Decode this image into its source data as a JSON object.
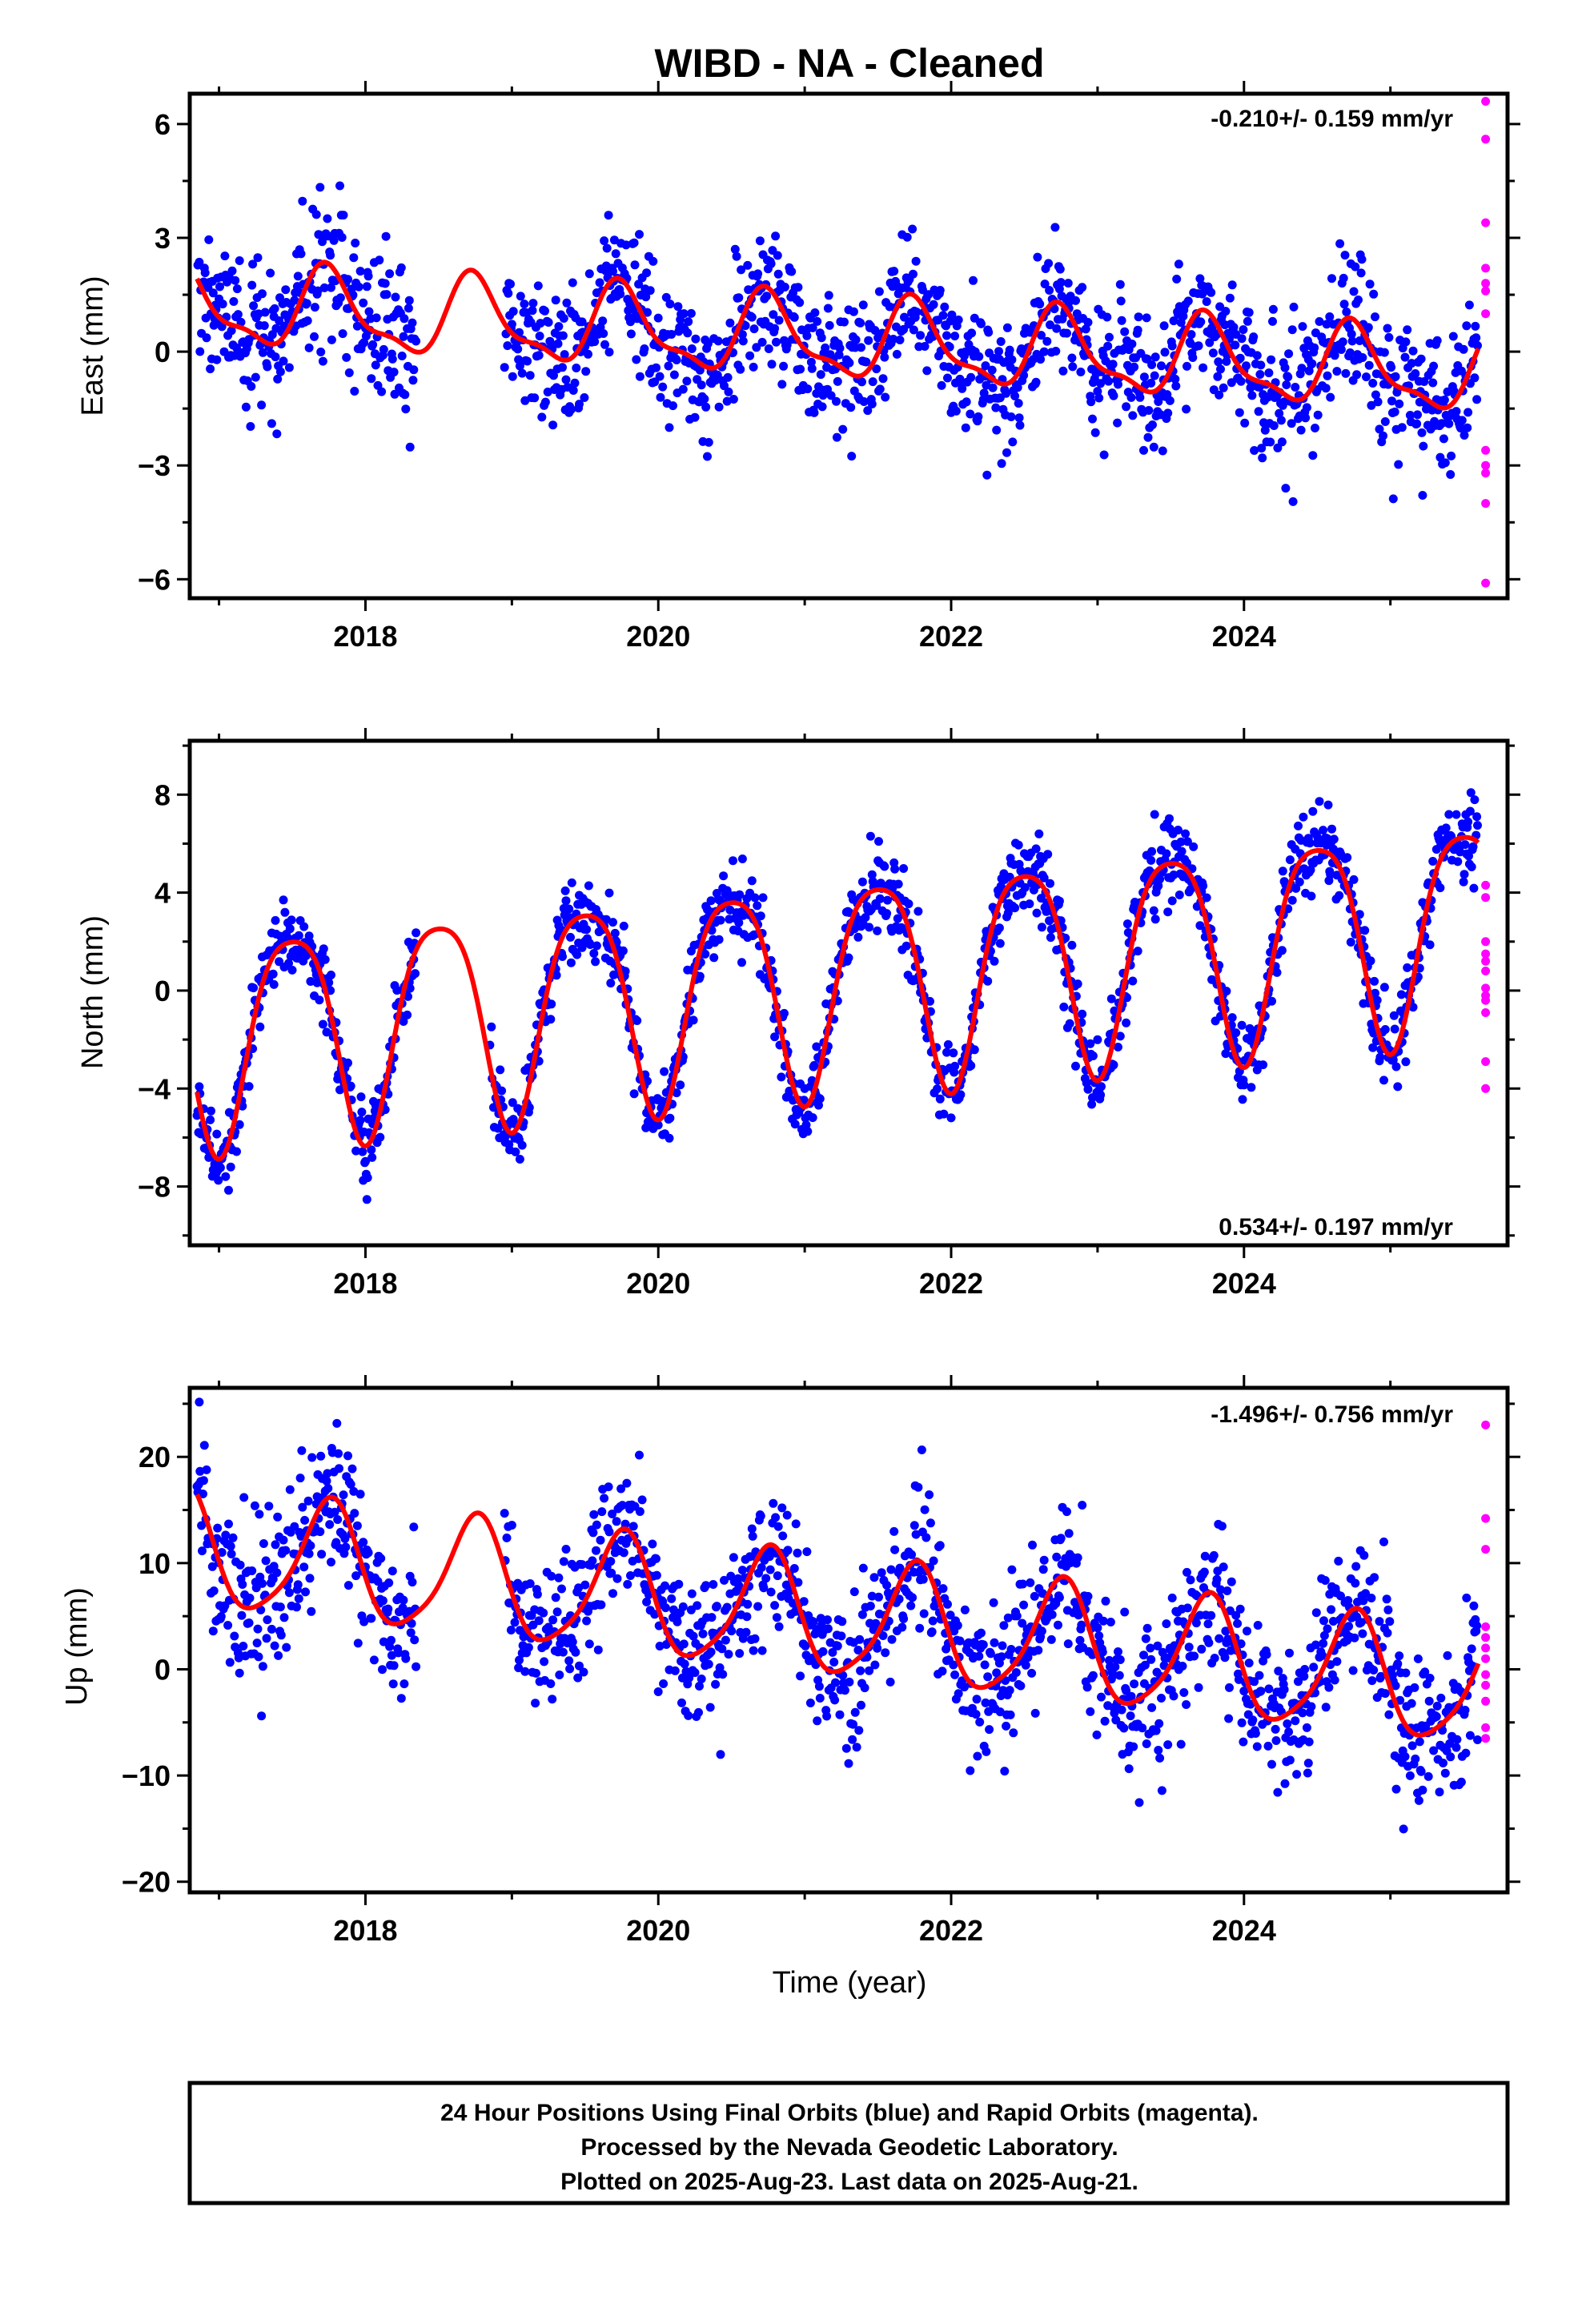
{
  "chart_data": [
    {
      "type": "scatter",
      "title": "WIBD  - NA - Cleaned",
      "ylabel": "East (mm)",
      "xlabel": "",
      "xlim": [
        2016.8,
        2025.8
      ],
      "ylim": [
        -6.5,
        6.8
      ],
      "x_ticks": [
        2018,
        2020,
        2022,
        2024
      ],
      "y_ticks": [
        -6,
        -3,
        0,
        3,
        6
      ],
      "rate_label": "-0.210+/- 0.159 mm/yr",
      "rate_position": "top-right",
      "grid": false,
      "colors": {
        "final": "#0000ff",
        "rapid": "#ff00ff",
        "fit": "#ff0000"
      },
      "model": {
        "offset": 0.35,
        "trend": -0.21,
        "annual_amp": 1.0,
        "annual_phase": 0.75,
        "semiannual_amp": 0.35,
        "semiannual_phase": 0.2,
        "noise": 0.9
      },
      "gaps": [
        [
          2018.35,
          2018.95
        ]
      ],
      "final_range": [
        2016.85,
        2025.6
      ],
      "rapid": {
        "x": [
          2025.65,
          2025.65,
          2025.65,
          2025.65,
          2025.65,
          2025.65,
          2025.65,
          2025.65,
          2025.65,
          2025.65,
          2025.65,
          2025.65
        ],
        "y": [
          6.6,
          5.6,
          3.4,
          2.2,
          1.8,
          1.6,
          -2.6,
          -3.0,
          -3.2,
          -4.0,
          -6.1,
          1.0
        ]
      }
    },
    {
      "type": "scatter",
      "title": "",
      "ylabel": "North (mm)",
      "xlabel": "",
      "xlim": [
        2016.8,
        2025.8
      ],
      "ylim": [
        -10.4,
        10.2
      ],
      "x_ticks": [
        2018,
        2020,
        2022,
        2024
      ],
      "y_ticks": [
        -8,
        -4,
        0,
        4,
        8
      ],
      "rate_label": "0.534+/- 0.197 mm/yr",
      "rate_position": "bottom-right",
      "grid": false,
      "colors": {
        "final": "#0000ff",
        "rapid": "#ff00ff",
        "fit": "#ff0000"
      },
      "model": {
        "offset": 0.35,
        "trend": 0.534,
        "annual_amp": 4.3,
        "annual_phase": 0.5,
        "semiannual_amp": 0.8,
        "semiannual_phase": 0.25,
        "noise": 0.8
      },
      "gaps": [
        [
          2018.35,
          2018.85
        ]
      ],
      "final_range": [
        2016.85,
        2025.6
      ],
      "rapid": {
        "x": [
          2025.65,
          2025.65,
          2025.65,
          2025.65,
          2025.65,
          2025.65,
          2025.65,
          2025.65,
          2025.65,
          2025.65,
          2025.65,
          2025.65
        ],
        "y": [
          4.3,
          3.8,
          2.0,
          1.5,
          1.2,
          0.8,
          -0.2,
          -0.4,
          -0.9,
          -2.9,
          -4.0,
          0.1
        ]
      }
    },
    {
      "type": "scatter",
      "title": "",
      "ylabel": "Up (mm)",
      "xlabel": "Time (year)",
      "xlim": [
        2016.8,
        2025.8
      ],
      "ylim": [
        -21,
        26.5
      ],
      "x_ticks": [
        2018,
        2020,
        2022,
        2024
      ],
      "y_ticks": [
        -20,
        -10,
        0,
        10,
        20
      ],
      "rate_label": "-1.496+/- 0.756 mm/yr",
      "rate_position": "top-right",
      "grid": false,
      "colors": {
        "final": "#0000ff",
        "rapid": "#ff00ff",
        "fit": "#ff0000"
      },
      "model": {
        "offset": 5.0,
        "trend": -1.496,
        "annual_amp": 5.5,
        "annual_phase": 0.75,
        "semiannual_amp": 1.0,
        "semiannual_phase": 0.3,
        "noise": 3.5
      },
      "gaps": [
        [
          2018.35,
          2018.95
        ]
      ],
      "final_range": [
        2016.85,
        2025.6
      ],
      "rapid": {
        "x": [
          2025.65,
          2025.65,
          2025.65,
          2025.65,
          2025.65,
          2025.65,
          2025.65,
          2025.65,
          2025.65,
          2025.65,
          2025.65,
          2025.65
        ],
        "y": [
          23.0,
          14.2,
          11.3,
          4.0,
          3.0,
          2.0,
          -0.5,
          -1.5,
          -3.0,
          -5.5,
          -6.5,
          1.0
        ]
      }
    }
  ],
  "footer": {
    "line1": "24 Hour Positions Using Final Orbits (blue) and Rapid Orbits (magenta).",
    "line2": "Processed by the Nevada Geodetic Laboratory.",
    "line3": "Plotted on 2025-Aug-23. Last data on 2025-Aug-21."
  }
}
